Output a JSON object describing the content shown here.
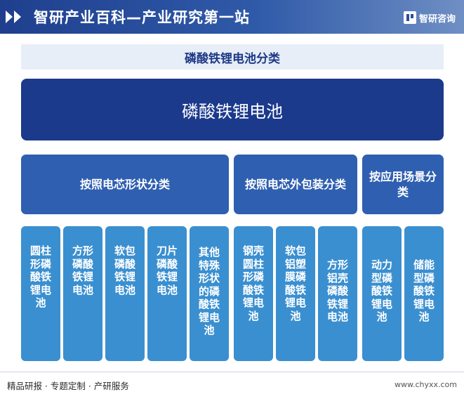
{
  "header": {
    "title": "智研产业百科—产业研究第一站",
    "brand": "智研咨询"
  },
  "subtitle": "磷酸铁锂电池分类",
  "root": "磷酸铁锂电池",
  "categories": [
    {
      "label": "按照电芯形状分类"
    },
    {
      "label": "按照电芯外包装分类"
    },
    {
      "label": "按应用场景分类"
    }
  ],
  "leaves": [
    "圆柱形磷酸铁锂电池",
    "方形磷酸铁锂电池",
    "软包磷酸铁锂电池",
    "刀片磷酸铁锂电池",
    "其他特殊形状的磷酸铁锂电池",
    "钢壳圆柱形磷酸铁锂电池",
    "软包铝塑膜磷酸铁锂电池",
    "方形铝壳磷酸铁锂电池",
    "动力型磷酸铁锂电池",
    "储能型磷酸铁锂电池"
  ],
  "footer": {
    "tagline": "精品研报 · 专题定制 · 产研服务",
    "url": "www.chyxx.com"
  },
  "colors": {
    "header": "#2a4f9c",
    "root": "#1b3a8c",
    "category": "#2f5fb0",
    "leaf": "#3a8fd0",
    "subtitle_bg": "#e8eef8"
  }
}
